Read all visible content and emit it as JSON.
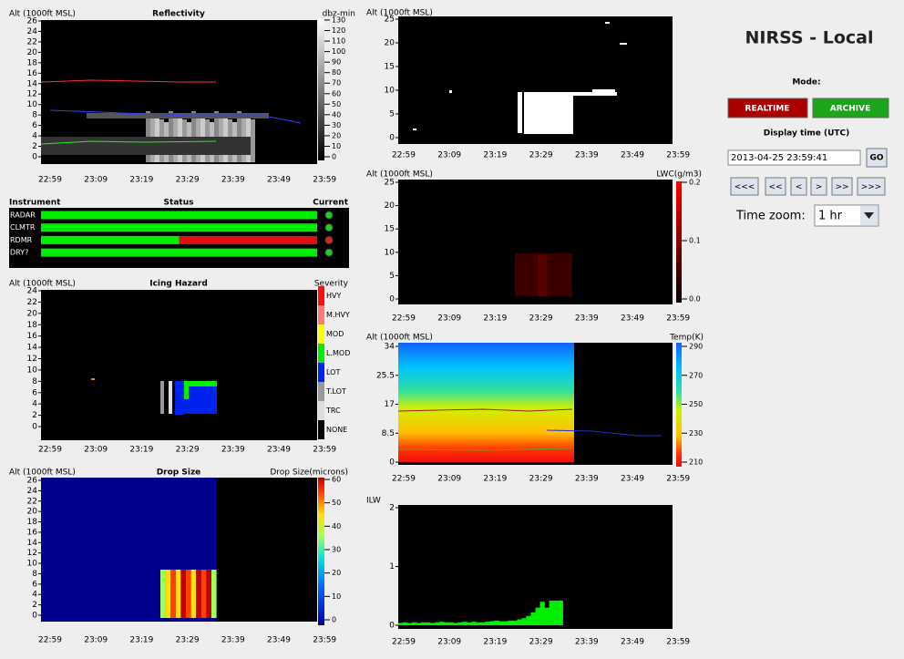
{
  "header": {
    "title": "NIRSS - Local"
  },
  "controls": {
    "mode_label": "Mode:",
    "realtime": "REALTIME",
    "archive": "ARCHIVE",
    "display_time_label": "Display time (UTC)",
    "display_time": "2013-04-25 23:59:41",
    "go": "GO",
    "nav": [
      "<<<",
      "<<",
      "<",
      ">",
      ">>",
      ">>>"
    ],
    "time_zoom_label": "Time zoom:",
    "time_zoom": "1 hr"
  },
  "time_ticks": [
    "22:59",
    "23:09",
    "23:19",
    "23:29",
    "23:39",
    "23:49",
    "23:59"
  ],
  "status": {
    "headers": [
      "Instrument",
      "Status",
      "Current"
    ],
    "instruments": [
      {
        "name": "RADAR",
        "bar": [
          "#00ee00"
        ],
        "light": "#22cc22"
      },
      {
        "name": "CLMTR",
        "bar": [
          "#00ee00"
        ],
        "light": "#22cc22"
      },
      {
        "name": "RDMR",
        "bar": [
          "#00ee00",
          "#dd1111"
        ],
        "light": "#dd2222"
      },
      {
        "name": "DRY?",
        "bar": [
          "#00ee00"
        ],
        "light": "#22cc22"
      }
    ]
  },
  "panels": [
    {
      "title": "Reflectivity",
      "y_label": "Alt (1000ft MSL)",
      "yticks": [
        0,
        2,
        4,
        6,
        8,
        10,
        12,
        14,
        16,
        18,
        20,
        22,
        24,
        26
      ],
      "scale_label": "dbz-min",
      "scale_ticks": [
        0,
        10,
        20,
        30,
        40,
        50,
        60,
        70,
        80,
        90,
        100,
        110,
        120,
        130
      ]
    },
    {
      "title": "Icing Hazard",
      "y_label": "Alt (1000ft MSL)",
      "yticks": [
        0,
        2,
        4,
        6,
        8,
        10,
        12,
        14,
        16,
        18,
        20,
        22,
        24
      ],
      "scale_label": "Severity",
      "severity_levels": [
        {
          "label": "HVY",
          "color": "#ff1010"
        },
        {
          "label": "M.HVY",
          "color": "#ff7a7a"
        },
        {
          "label": "MOD",
          "color": "#ffff00"
        },
        {
          "label": "L.MOD",
          "color": "#00ee00"
        },
        {
          "label": "LOT",
          "color": "#0022ee"
        },
        {
          "label": "T.LOT",
          "color": "#999999"
        },
        {
          "label": "TRC",
          "color": "#dddddd"
        },
        {
          "label": "NONE",
          "color": "#000000"
        }
      ]
    },
    {
      "title": "Drop Size",
      "y_label": "Alt (1000ft MSL)",
      "yticks": [
        0,
        2,
        4,
        6,
        8,
        10,
        12,
        14,
        16,
        18,
        20,
        22,
        24,
        26
      ],
      "scale_label": "Drop Size(microns)",
      "scale_ticks": [
        0,
        10,
        20,
        30,
        40,
        50,
        60
      ]
    },
    {
      "y_label": "Alt (1000ft MSL)",
      "yticks": [
        0,
        5,
        10,
        15,
        20,
        25
      ]
    },
    {
      "y_label": "Alt (1000ft MSL)",
      "yticks": [
        0,
        5,
        10,
        15,
        20,
        25
      ],
      "scale_label": "LWC(g/m3)",
      "scale_ticks": [
        {
          "value": 0,
          "label": "0.0"
        },
        {
          "value": 0.1,
          "label": "0.1"
        },
        {
          "value": 0.2,
          "label": "0.2"
        }
      ]
    },
    {
      "y_label": "Alt (1000ft MSL)",
      "yticks": [
        0,
        8.5,
        17,
        25.5,
        34
      ],
      "scale_label": "Temp(K)",
      "scale_ticks": [
        210,
        230,
        250,
        270,
        290
      ]
    },
    {
      "y_label": "ILW",
      "yticks": [
        0,
        1,
        2
      ],
      "color": "#00ee00",
      "values": [
        0.04,
        0.05,
        0.04,
        0.05,
        0.04,
        0.05,
        0.05,
        0.04,
        0.05,
        0.06,
        0.05,
        0.05,
        0.04,
        0.05,
        0.06,
        0.05,
        0.06,
        0.05,
        0.05,
        0.06,
        0.07,
        0.08,
        0.07,
        0.07,
        0.08,
        0.08,
        0.1,
        0.12,
        0.16,
        0.22,
        0.3,
        0.4,
        0.3,
        0.42,
        0.42,
        0.42
      ]
    }
  ]
}
